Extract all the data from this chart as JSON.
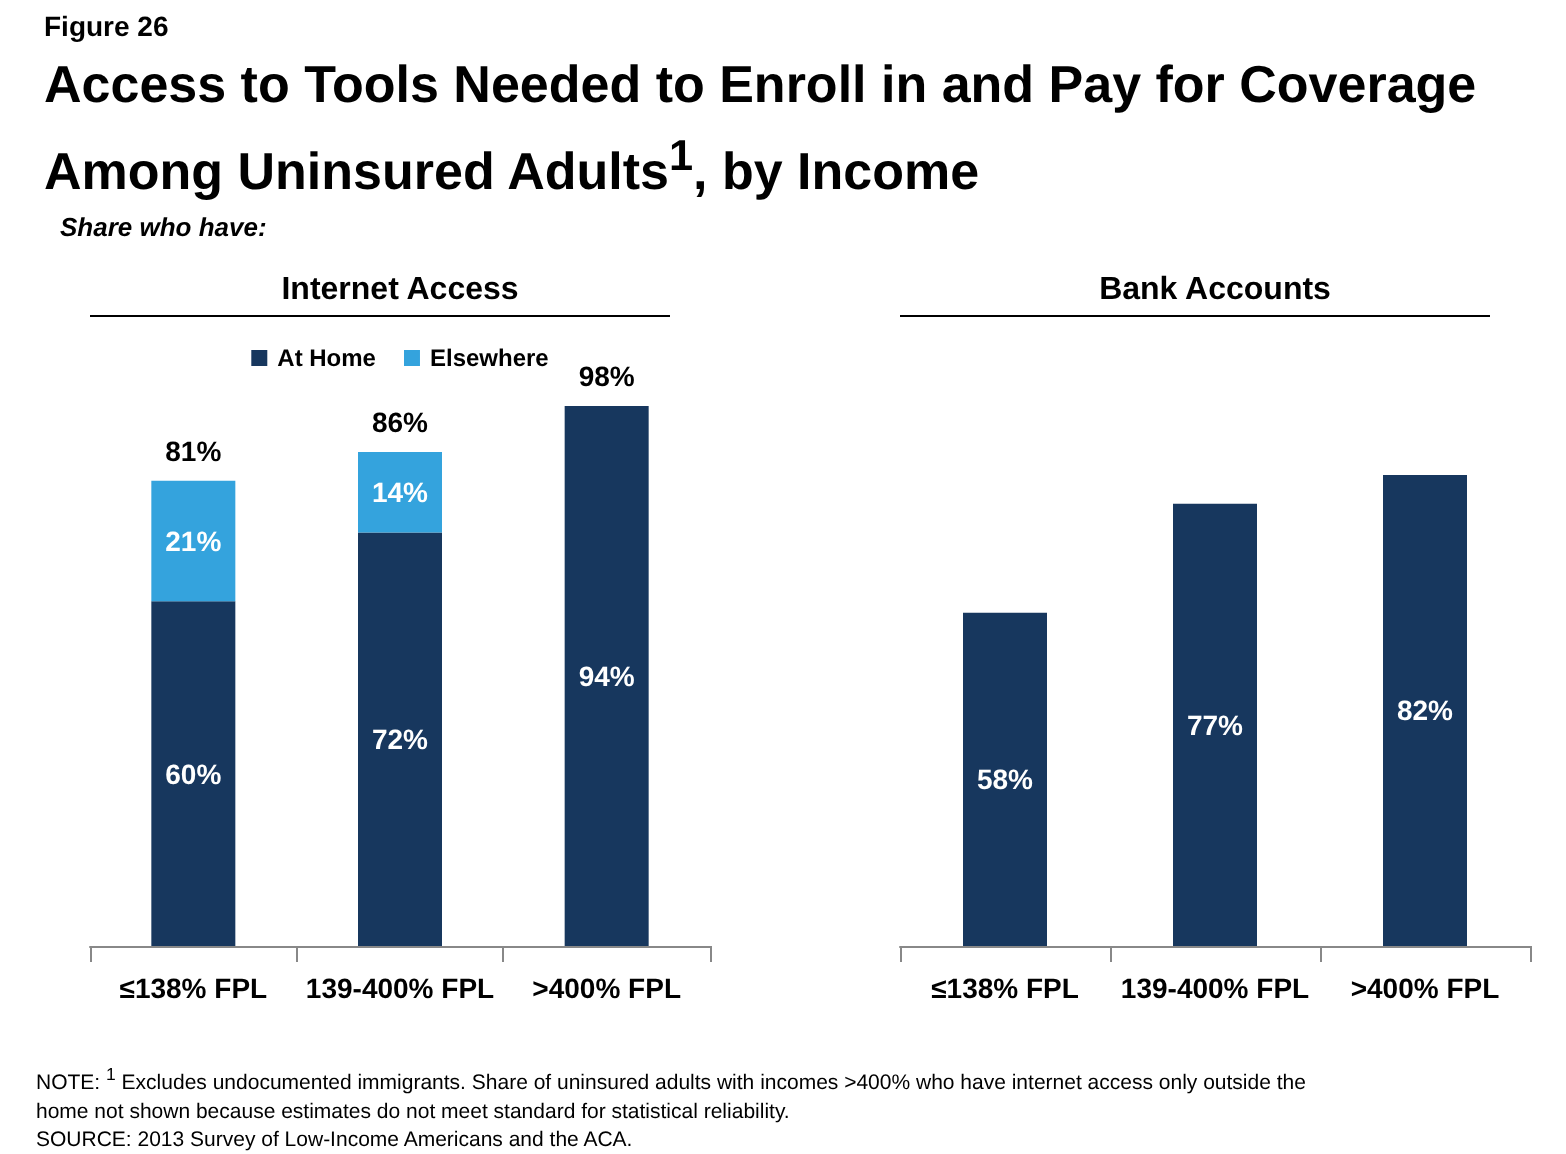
{
  "chart_data": [
    {
      "type": "other",
      "title": "Access to Tools Needed to Enroll in and Pay for Coverage Among Uninsured Adults$^{1}$, by Income",
      "subtitle": "Share who have:",
      "annotations": [
        "Figure 26",
        "NOTE: $^{1}$ Excludes undocumented immigrants. Share of uninsured adults with incomes >400% who have internet access only outside the home not shown because estimates do not meet standard for statistical reliability.",
        "SOURCE: 2013 Survey of Low-Income Americans and the ACA."
      ]
    },
    {
      "type": "bar",
      "title": "Internet Access",
      "stacked": true,
      "legend": "top",
      "categories": [
        "≤138% FPL",
        "139-400% FPL",
        ">400% FPL"
      ],
      "series": [
        {
          "name": "At Home",
          "color": "#17375e",
          "values": [
            60,
            72,
            94
          ],
          "value_labels": [
            "60%",
            "72%",
            "94%"
          ]
        },
        {
          "name": "Elsewhere",
          "color": "#34a3dd",
          "values": [
            21,
            14,
            null
          ],
          "value_labels": [
            "21%",
            "14%",
            null
          ]
        }
      ],
      "totals": [
        "81%",
        "86%",
        null
      ],
      "annotations": [
        "98%"
      ]
    },
    {
      "type": "bar",
      "title": "Bank Accounts",
      "categories": [
        "≤138% FPL",
        "139-400% FPL",
        ">400% FPL"
      ],
      "color": "#17375e",
      "values": [
        58,
        77,
        82
      ],
      "value_labels": [
        "58%",
        "77%",
        "82%"
      ]
    }
  ]
}
